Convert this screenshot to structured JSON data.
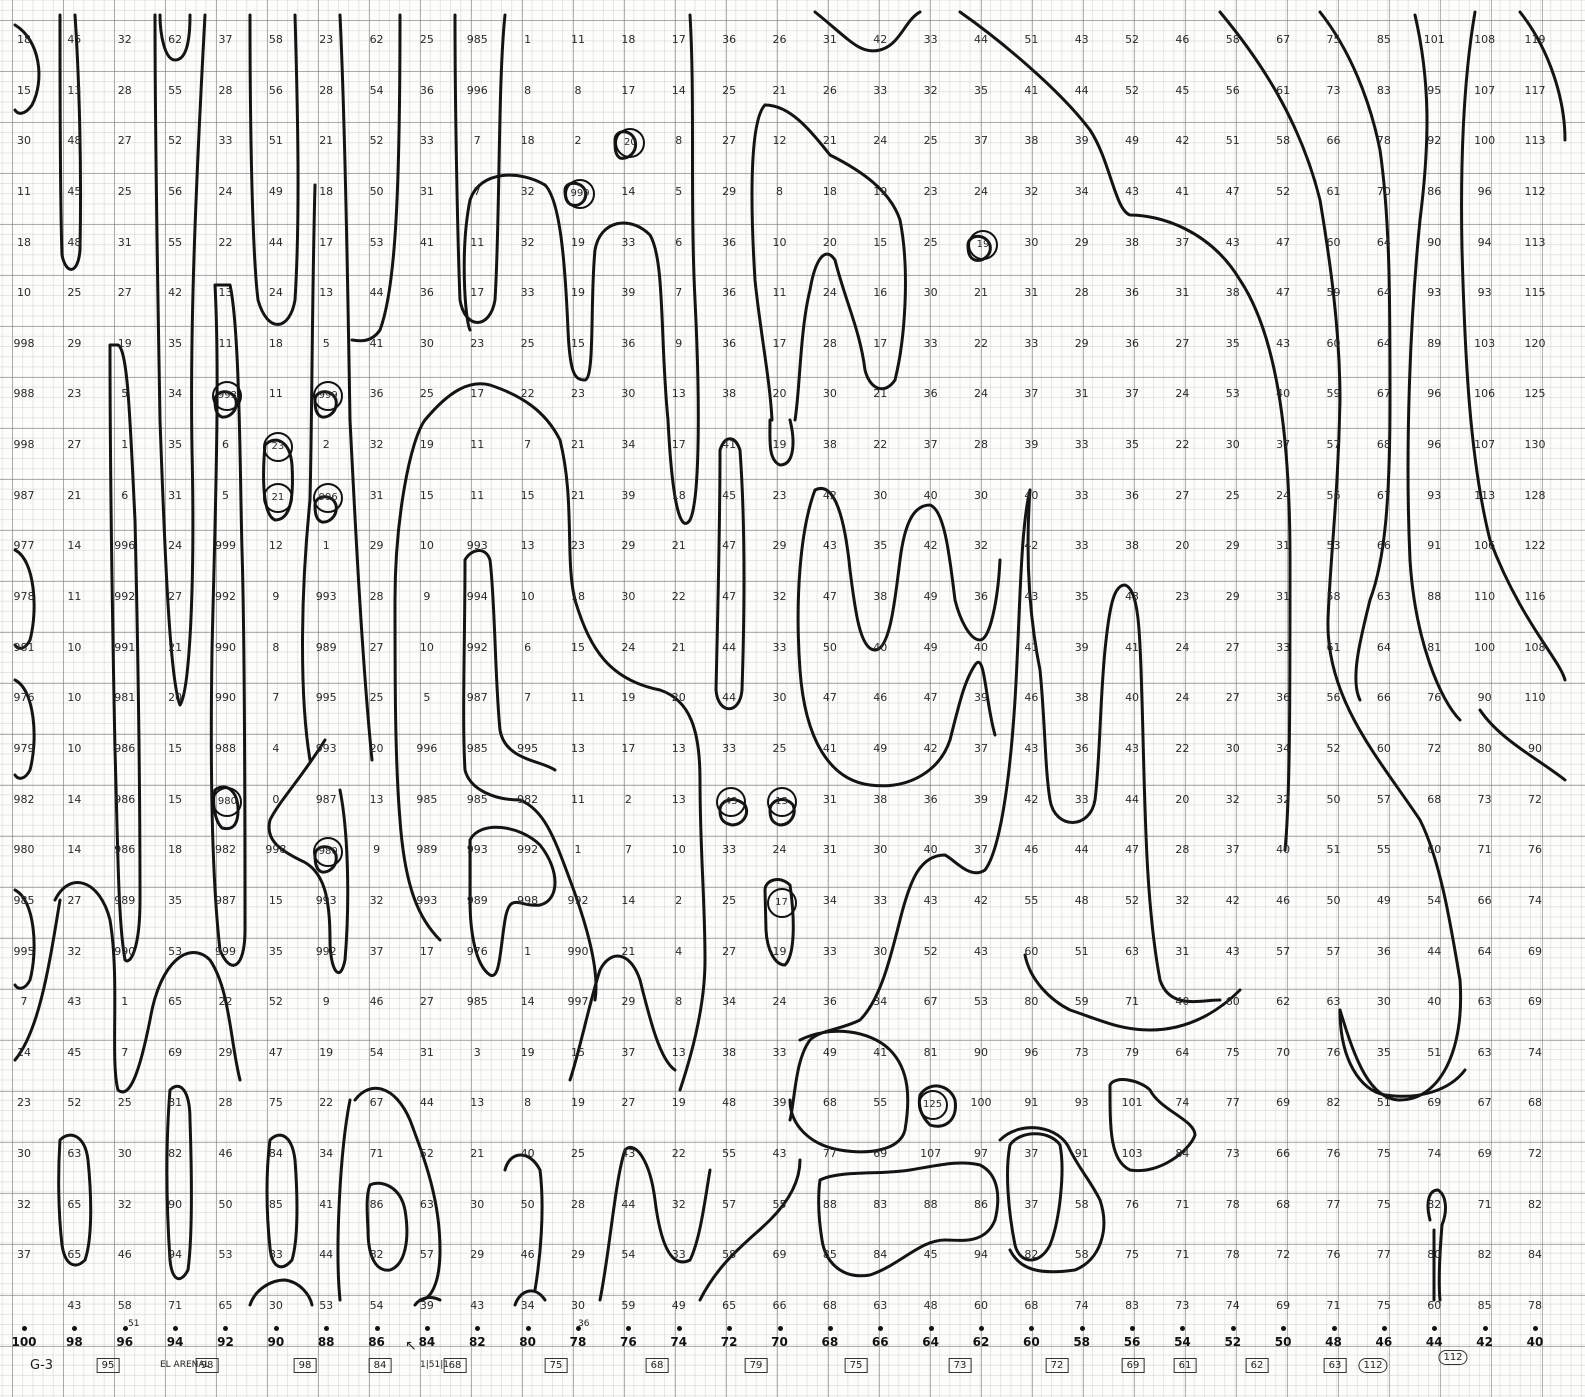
{
  "grid": {
    "columns": [
      "100",
      "98",
      "96",
      "94",
      "92",
      "90",
      "88",
      "86",
      "84",
      "82",
      "80",
      "78",
      "76",
      "74",
      "72",
      "70",
      "68",
      "66",
      "64",
      "62",
      "60",
      "58",
      "56",
      "54",
      "52",
      "50",
      "48",
      "46",
      "44",
      "42",
      "40"
    ],
    "rows": [
      [
        "18",
        "45",
        "32",
        "62",
        "37",
        "58",
        "23",
        "62",
        "25",
        "985",
        "1",
        "11",
        "18",
        "17",
        "36",
        "26",
        "31",
        "42",
        "33",
        "44",
        "51",
        "43",
        "52",
        "46",
        "58",
        "67",
        "75",
        "85",
        "101",
        "108",
        "119"
      ],
      [
        "15",
        "13",
        "28",
        "55",
        "28",
        "56",
        "28",
        "54",
        "36",
        "996",
        "8",
        "8",
        "17",
        "14",
        "25",
        "21",
        "26",
        "33",
        "32",
        "35",
        "41",
        "44",
        "52",
        "45",
        "56",
        "61",
        "73",
        "83",
        "95",
        "107",
        "117"
      ],
      [
        "30",
        "48",
        "27",
        "52",
        "33",
        "51",
        "21",
        "52",
        "33",
        "7",
        "18",
        "2",
        "20",
        "8",
        "27",
        "12",
        "21",
        "24",
        "25",
        "37",
        "38",
        "39",
        "49",
        "42",
        "51",
        "58",
        "66",
        "78",
        "92",
        "100",
        "113"
      ],
      [
        "11",
        "45",
        "25",
        "56",
        "24",
        "49",
        "18",
        "50",
        "31",
        "7",
        "32",
        "999",
        "14",
        "5",
        "29",
        "8",
        "18",
        "19",
        "23",
        "24",
        "32",
        "34",
        "43",
        "41",
        "47",
        "52",
        "61",
        "70",
        "86",
        "96",
        "112"
      ],
      [
        "18",
        "48",
        "31",
        "55",
        "22",
        "44",
        "17",
        "53",
        "41",
        "11",
        "32",
        "19",
        "33",
        "6",
        "36",
        "10",
        "20",
        "15",
        "25",
        "19",
        "30",
        "29",
        "38",
        "37",
        "43",
        "47",
        "60",
        "64",
        "90",
        "94",
        "113"
      ],
      [
        "10",
        "25",
        "27",
        "42",
        "13",
        "24",
        "13",
        "44",
        "36",
        "17",
        "33",
        "19",
        "39",
        "7",
        "36",
        "11",
        "24",
        "16",
        "30",
        "21",
        "31",
        "28",
        "36",
        "31",
        "38",
        "47",
        "59",
        "64",
        "93",
        "93",
        "115"
      ],
      [
        "998",
        "29",
        "19",
        "35",
        "11",
        "18",
        "5",
        "41",
        "30",
        "23",
        "25",
        "15",
        "36",
        "9",
        "36",
        "17",
        "28",
        "17",
        "33",
        "22",
        "33",
        "29",
        "36",
        "27",
        "35",
        "43",
        "60",
        "64",
        "89",
        "103",
        "120"
      ],
      [
        "988",
        "23",
        "5",
        "34",
        "993",
        "11",
        "999",
        "36",
        "25",
        "17",
        "22",
        "23",
        "30",
        "13",
        "38",
        "20",
        "30",
        "21",
        "36",
        "24",
        "37",
        "31",
        "37",
        "24",
        "53",
        "40",
        "59",
        "67",
        "96",
        "106",
        "125"
      ],
      [
        "998",
        "27",
        "1",
        "35",
        "6",
        "23",
        "2",
        "32",
        "19",
        "11",
        "7",
        "21",
        "34",
        "17",
        "41",
        "19",
        "38",
        "22",
        "37",
        "28",
        "39",
        "33",
        "35",
        "22",
        "30",
        "37",
        "57",
        "68",
        "96",
        "107",
        "130"
      ],
      [
        "987",
        "21",
        "6",
        "31",
        "5",
        "21",
        "996",
        "31",
        "15",
        "11",
        "15",
        "21",
        "39",
        "18",
        "45",
        "23",
        "42",
        "30",
        "40",
        "30",
        "40",
        "33",
        "36",
        "27",
        "25",
        "24",
        "56",
        "67",
        "93",
        "113",
        "128"
      ],
      [
        "977",
        "14",
        "996",
        "24",
        "999",
        "12",
        "1",
        "29",
        "10",
        "993",
        "13",
        "23",
        "29",
        "21",
        "47",
        "29",
        "43",
        "35",
        "42",
        "32",
        "42",
        "33",
        "38",
        "20",
        "29",
        "31",
        "53",
        "66",
        "91",
        "106",
        "122"
      ],
      [
        "978",
        "11",
        "992",
        "27",
        "992",
        "9",
        "993",
        "28",
        "9",
        "994",
        "10",
        "18",
        "30",
        "22",
        "47",
        "32",
        "47",
        "38",
        "49",
        "36",
        "43",
        "35",
        "43",
        "23",
        "29",
        "31",
        "58",
        "63",
        "88",
        "110",
        "116"
      ],
      [
        "981",
        "10",
        "991",
        "21",
        "990",
        "8",
        "989",
        "27",
        "10",
        "992",
        "6",
        "15",
        "24",
        "21",
        "44",
        "33",
        "50",
        "40",
        "49",
        "40",
        "41",
        "39",
        "41",
        "24",
        "27",
        "33",
        "61",
        "64",
        "81",
        "100",
        "108"
      ],
      [
        "976",
        "10",
        "981",
        "20",
        "990",
        "7",
        "995",
        "25",
        "5",
        "987",
        "7",
        "11",
        "19",
        "20",
        "44",
        "30",
        "47",
        "46",
        "47",
        "39",
        "46",
        "38",
        "40",
        "24",
        "27",
        "36",
        "56",
        "66",
        "76",
        "90",
        "110"
      ],
      [
        "979",
        "10",
        "986",
        "15",
        "988",
        "4",
        "993",
        "20",
        "996",
        "985",
        "995",
        "13",
        "17",
        "13",
        "33",
        "25",
        "41",
        "49",
        "42",
        "37",
        "43",
        "36",
        "43",
        "22",
        "30",
        "34",
        "52",
        "60",
        "72",
        "80",
        "90"
      ],
      [
        "982",
        "14",
        "986",
        "15",
        "980",
        "0",
        "987",
        "13",
        "985",
        "985",
        "982",
        "11",
        "2",
        "13",
        "43",
        "13",
        "31",
        "38",
        "36",
        "39",
        "42",
        "33",
        "44",
        "20",
        "32",
        "32",
        "50",
        "57",
        "68",
        "73",
        "72"
      ],
      [
        "980",
        "14",
        "986",
        "18",
        "982",
        "998",
        "980",
        "9",
        "989",
        "993",
        "992",
        "1",
        "7",
        "10",
        "33",
        "24",
        "31",
        "30",
        "40",
        "37",
        "46",
        "44",
        "47",
        "28",
        "37",
        "40",
        "51",
        "55",
        "60",
        "71",
        "76"
      ],
      [
        "985",
        "27",
        "989",
        "35",
        "987",
        "15",
        "993",
        "32",
        "993",
        "989",
        "998",
        "992",
        "14",
        "2",
        "25",
        "17",
        "34",
        "33",
        "43",
        "42",
        "55",
        "48",
        "52",
        "32",
        "42",
        "46",
        "50",
        "49",
        "54",
        "66",
        "74"
      ],
      [
        "995",
        "32",
        "990",
        "53",
        "999",
        "35",
        "992",
        "37",
        "17",
        "976",
        "1",
        "990",
        "21",
        "4",
        "27",
        "19",
        "33",
        "30",
        "52",
        "43",
        "60",
        "51",
        "63",
        "31",
        "43",
        "57",
        "57",
        "36",
        "44",
        "64",
        "69"
      ],
      [
        "7",
        "43",
        "1",
        "65",
        "22",
        "52",
        "9",
        "46",
        "27",
        "985",
        "14",
        "997",
        "29",
        "8",
        "34",
        "24",
        "36",
        "34",
        "67",
        "53",
        "80",
        "59",
        "71",
        "40",
        "60",
        "62",
        "63",
        "30",
        "40",
        "63",
        "69"
      ],
      [
        "14",
        "45",
        "7",
        "69",
        "29",
        "47",
        "19",
        "54",
        "31",
        "3",
        "19",
        "15",
        "37",
        "13",
        "38",
        "33",
        "49",
        "41",
        "81",
        "90",
        "96",
        "73",
        "79",
        "64",
        "75",
        "70",
        "76",
        "35",
        "51",
        "63",
        "74"
      ],
      [
        "23",
        "52",
        "25",
        "81",
        "28",
        "75",
        "22",
        "67",
        "44",
        "13",
        "8",
        "19",
        "27",
        "19",
        "48",
        "39",
        "68",
        "55",
        "125",
        "100",
        "91",
        "93",
        "101",
        "74",
        "77",
        "69",
        "82",
        "51",
        "69",
        "67",
        "68"
      ],
      [
        "30",
        "63",
        "30",
        "82",
        "46",
        "84",
        "34",
        "71",
        "52",
        "21",
        "40",
        "25",
        "43",
        "22",
        "55",
        "43",
        "77",
        "69",
        "107",
        "97",
        "37",
        "91",
        "103",
        "84",
        "73",
        "66",
        "76",
        "75",
        "74",
        "69",
        "72"
      ],
      [
        "32",
        "65",
        "32",
        "90",
        "50",
        "85",
        "41",
        "86",
        "63",
        "30",
        "50",
        "28",
        "44",
        "32",
        "57",
        "55",
        "88",
        "83",
        "88",
        "86",
        "37",
        "58",
        "76",
        "71",
        "78",
        "68",
        "77",
        "75",
        "82",
        "71",
        "82"
      ],
      [
        "37",
        "65",
        "46",
        "94",
        "53",
        "83",
        "44",
        "82",
        "57",
        "29",
        "46",
        "29",
        "54",
        "33",
        "58",
        "69",
        "85",
        "84",
        "45",
        "94",
        "82",
        "58",
        "75",
        "71",
        "78",
        "72",
        "76",
        "77",
        "80",
        "82",
        "84"
      ],
      [
        "",
        "43",
        "58",
        "71",
        "65",
        "30",
        "53",
        "54",
        "39",
        "43",
        "34",
        "30",
        "59",
        "49",
        "65",
        "66",
        "68",
        "63",
        "48",
        "60",
        "68",
        "74",
        "83",
        "73",
        "74",
        "69",
        "71",
        "75",
        "60",
        "85",
        "78"
      ]
    ]
  },
  "station_labels": [
    "95",
    "98",
    "98",
    "84",
    "68",
    "75",
    "68",
    "79",
    "75",
    "73",
    "72",
    "69",
    "61",
    "62",
    "63",
    "112",
    "112"
  ],
  "annotations": {
    "sheet_id": "G-3",
    "place": "EL ARENAL",
    "arrow": "↖",
    "mark_under_96": "51",
    "mark_under_78": "36",
    "mark_left": "1|51|1"
  },
  "circled_values": [
    "20",
    "999",
    "19",
    "993",
    "999",
    "23",
    "21",
    "996",
    "980",
    "980",
    "43",
    "13",
    "17",
    "125"
  ]
}
